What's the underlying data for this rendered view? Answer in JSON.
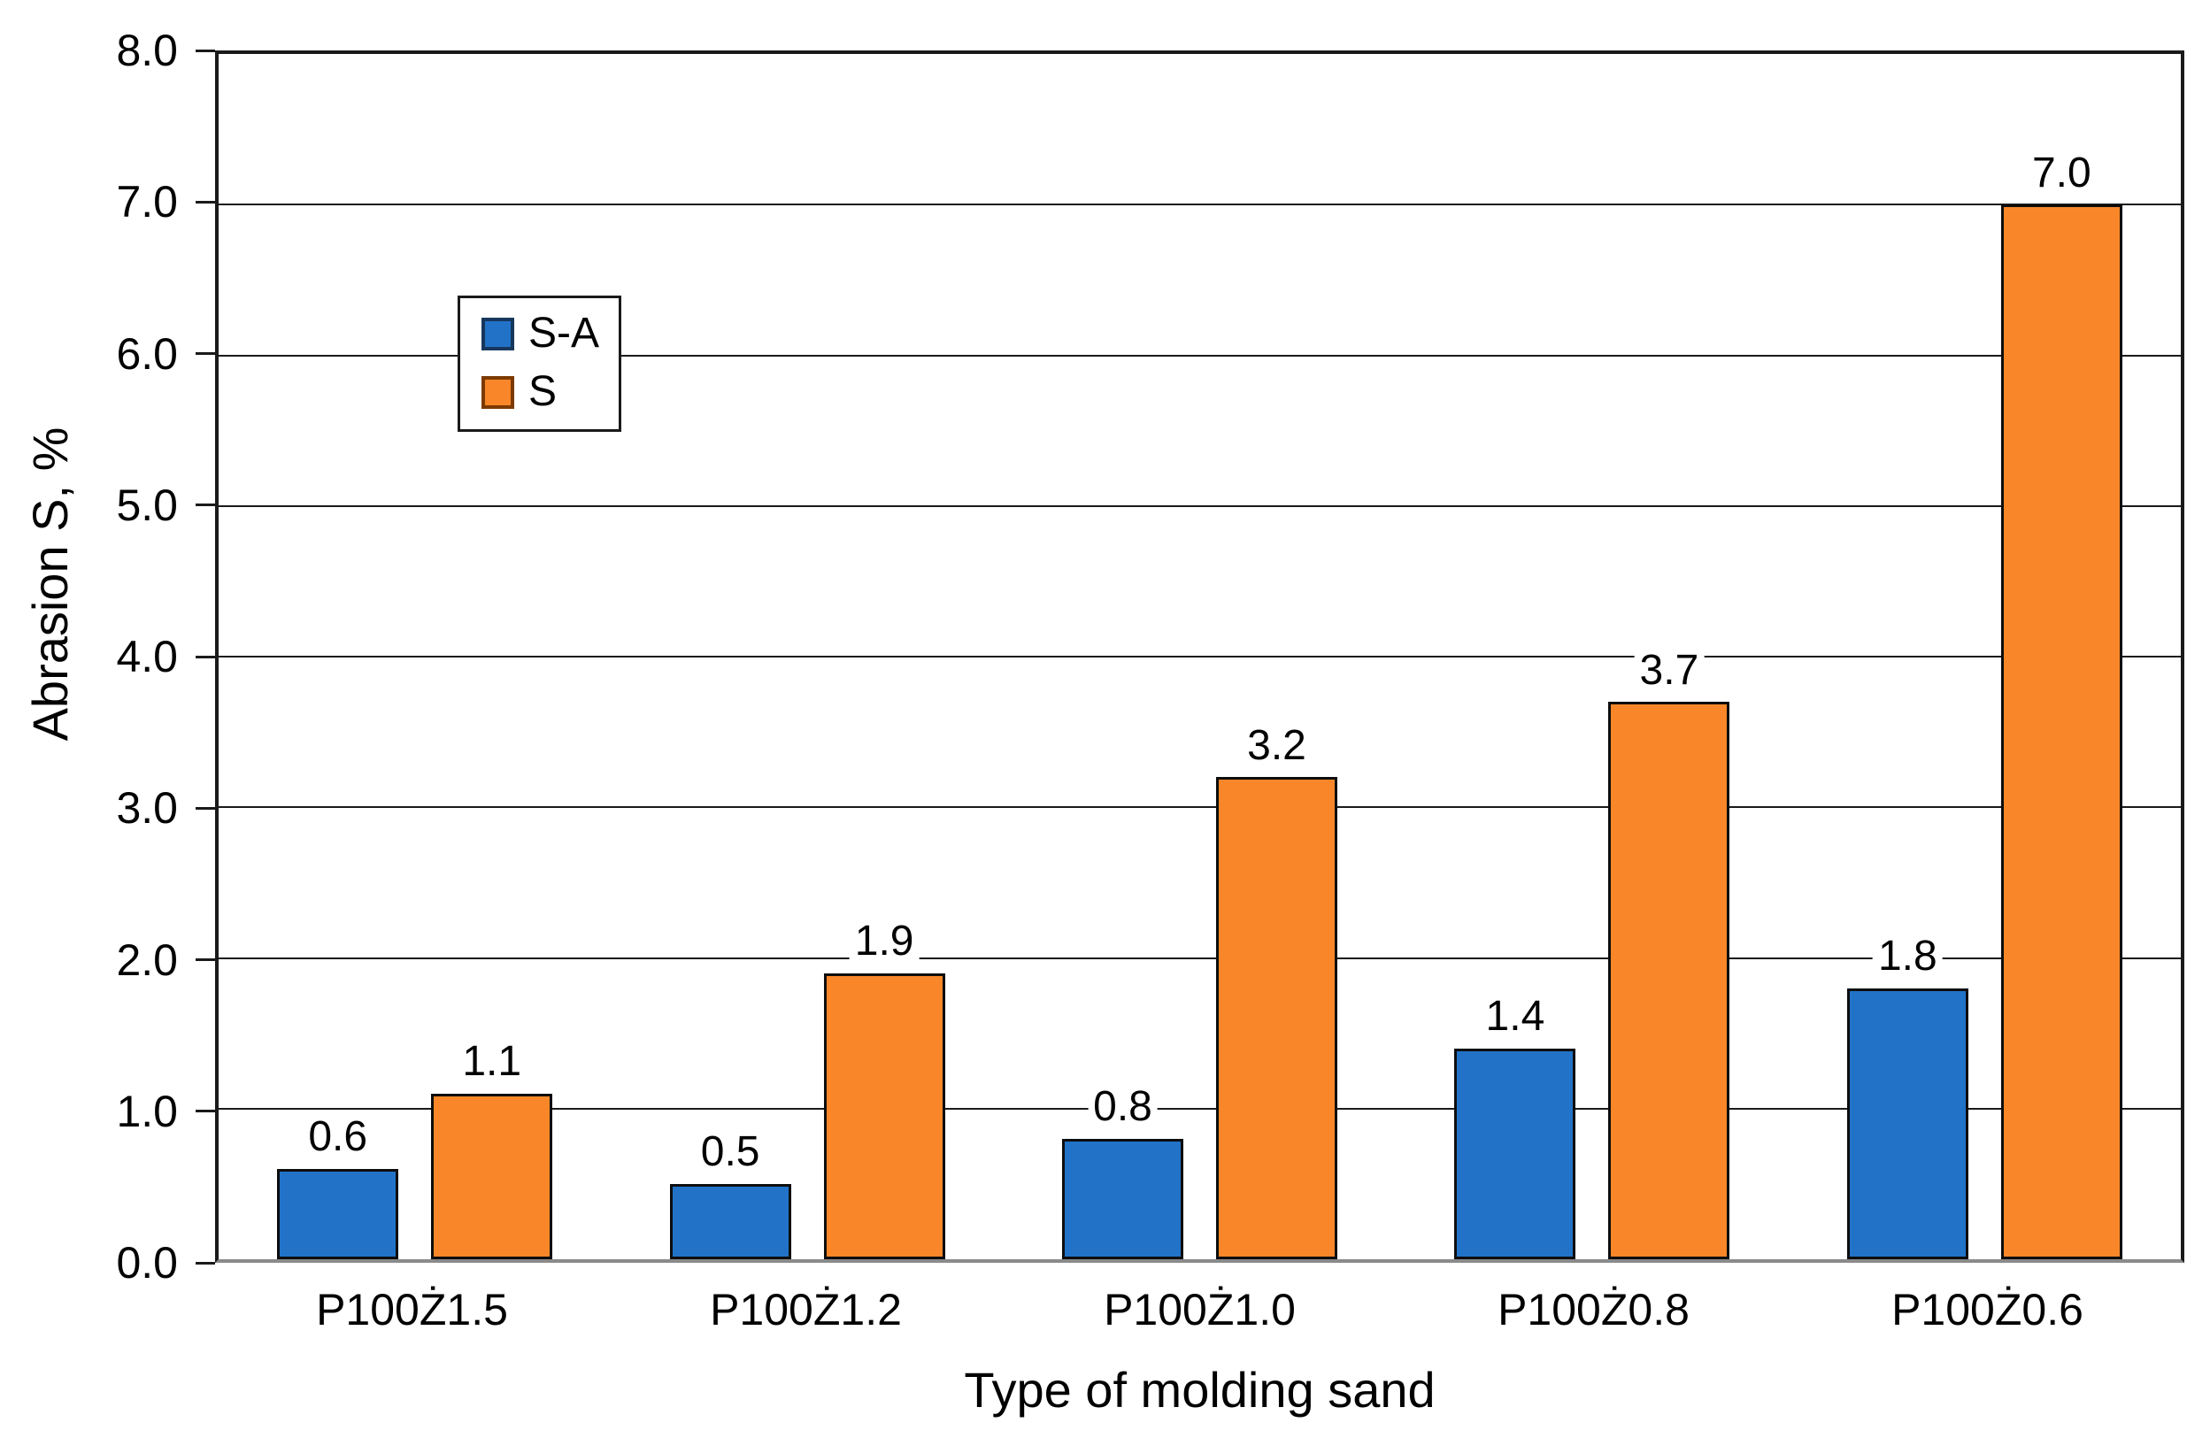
{
  "chart_data": {
    "type": "bar",
    "title": "",
    "xlabel": "Type of molding sand",
    "ylabel": "Abrasion S, %",
    "ylim": [
      0,
      8
    ],
    "ytick_step": 1.0,
    "ytick_labels": [
      "0.0",
      "1.0",
      "2.0",
      "3.0",
      "4.0",
      "5.0",
      "6.0",
      "7.0",
      "8.0"
    ],
    "grid": "horizontal",
    "legend_position": "upper-left-inside",
    "categories": [
      "P100Ż1.5",
      "P100Ż1.2",
      "P100Ż1.0",
      "P100Ż0.8",
      "P100Ż0.6"
    ],
    "series": [
      {
        "name": "S-A",
        "color": "#2273C8",
        "swatch_border_color": "#17375D",
        "values": [
          0.6,
          0.5,
          0.8,
          1.4,
          1.8
        ],
        "value_labels": [
          "0.6",
          "0.5",
          "0.8",
          "1.4",
          "1.8"
        ]
      },
      {
        "name": "S",
        "color": "#F98729",
        "swatch_border_color": "#7C3A00",
        "values": [
          1.1,
          1.9,
          3.2,
          3.7,
          7.0
        ],
        "value_labels": [
          "1.1",
          "1.9",
          "3.2",
          "3.7",
          "7.0"
        ]
      }
    ],
    "bar_outline_color": "#0D0D0D",
    "gridline_color": "#1A1A1A",
    "axis_line_color": "#8A8A8A"
  }
}
